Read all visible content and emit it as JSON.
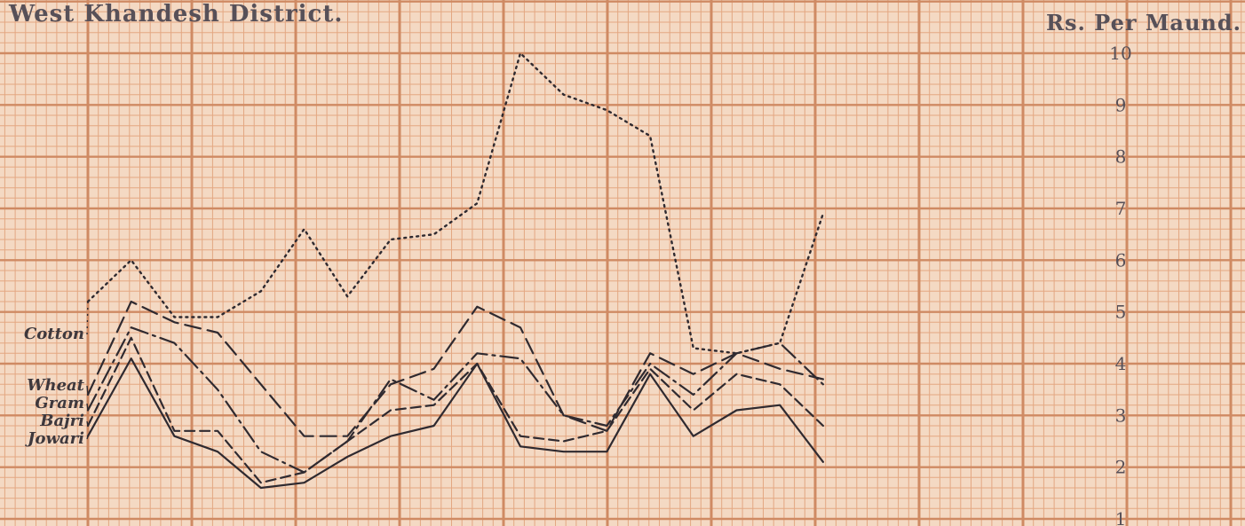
{
  "chart_data": {
    "type": "line",
    "title": "West Khandesh District.",
    "ylabel": "Rs. Per Maund.",
    "ylim": [
      1,
      10
    ],
    "y_ticks": [
      "1",
      "2",
      "3",
      "4",
      "5",
      "6",
      "7",
      "8",
      "9",
      "10"
    ],
    "x_points": 18,
    "series": [
      {
        "name": "Cotton",
        "dash": "2,5",
        "stroke_width": 2.4,
        "values": [
          5.2,
          6.0,
          4.9,
          4.9,
          5.4,
          6.6,
          5.3,
          6.4,
          6.5,
          7.1,
          10.0,
          9.2,
          8.9,
          8.4,
          4.3,
          4.2,
          4.4,
          6.9
        ]
      },
      {
        "name": "Wheat",
        "dash": "18,8",
        "stroke_width": 2.2,
        "values": [
          3.4,
          5.2,
          4.8,
          4.6,
          3.6,
          2.6,
          2.6,
          3.6,
          3.9,
          5.1,
          4.7,
          3.0,
          2.7,
          4.2,
          3.8,
          4.2,
          3.9,
          3.7
        ]
      },
      {
        "name": "Gram",
        "dash": "20,6,3,6",
        "stroke_width": 2.2,
        "values": [
          3.1,
          4.7,
          4.4,
          3.5,
          2.3,
          1.9,
          2.5,
          3.7,
          3.3,
          4.2,
          4.1,
          3.0,
          2.8,
          4.0,
          3.4,
          4.2,
          4.4,
          3.6
        ]
      },
      {
        "name": "Bajri",
        "dash": "11,6",
        "stroke_width": 2.2,
        "values": [
          2.8,
          4.5,
          2.7,
          2.7,
          1.7,
          1.9,
          2.5,
          3.1,
          3.2,
          4.0,
          2.6,
          2.5,
          2.7,
          3.9,
          3.1,
          3.8,
          3.6,
          2.8
        ]
      },
      {
        "name": "Jowari",
        "dash": "",
        "stroke_width": 2.2,
        "values": [
          2.6,
          4.1,
          2.6,
          2.3,
          1.6,
          1.7,
          2.2,
          2.6,
          2.8,
          4.0,
          2.4,
          2.3,
          2.3,
          3.8,
          2.6,
          3.1,
          3.2,
          2.1
        ]
      }
    ],
    "grid": true,
    "legend": "left"
  },
  "colors": {
    "paper": "#f4d9c3",
    "grid_fine": "#e3a782",
    "grid_major": "#cf8a63",
    "ink": "#2f2a30"
  }
}
